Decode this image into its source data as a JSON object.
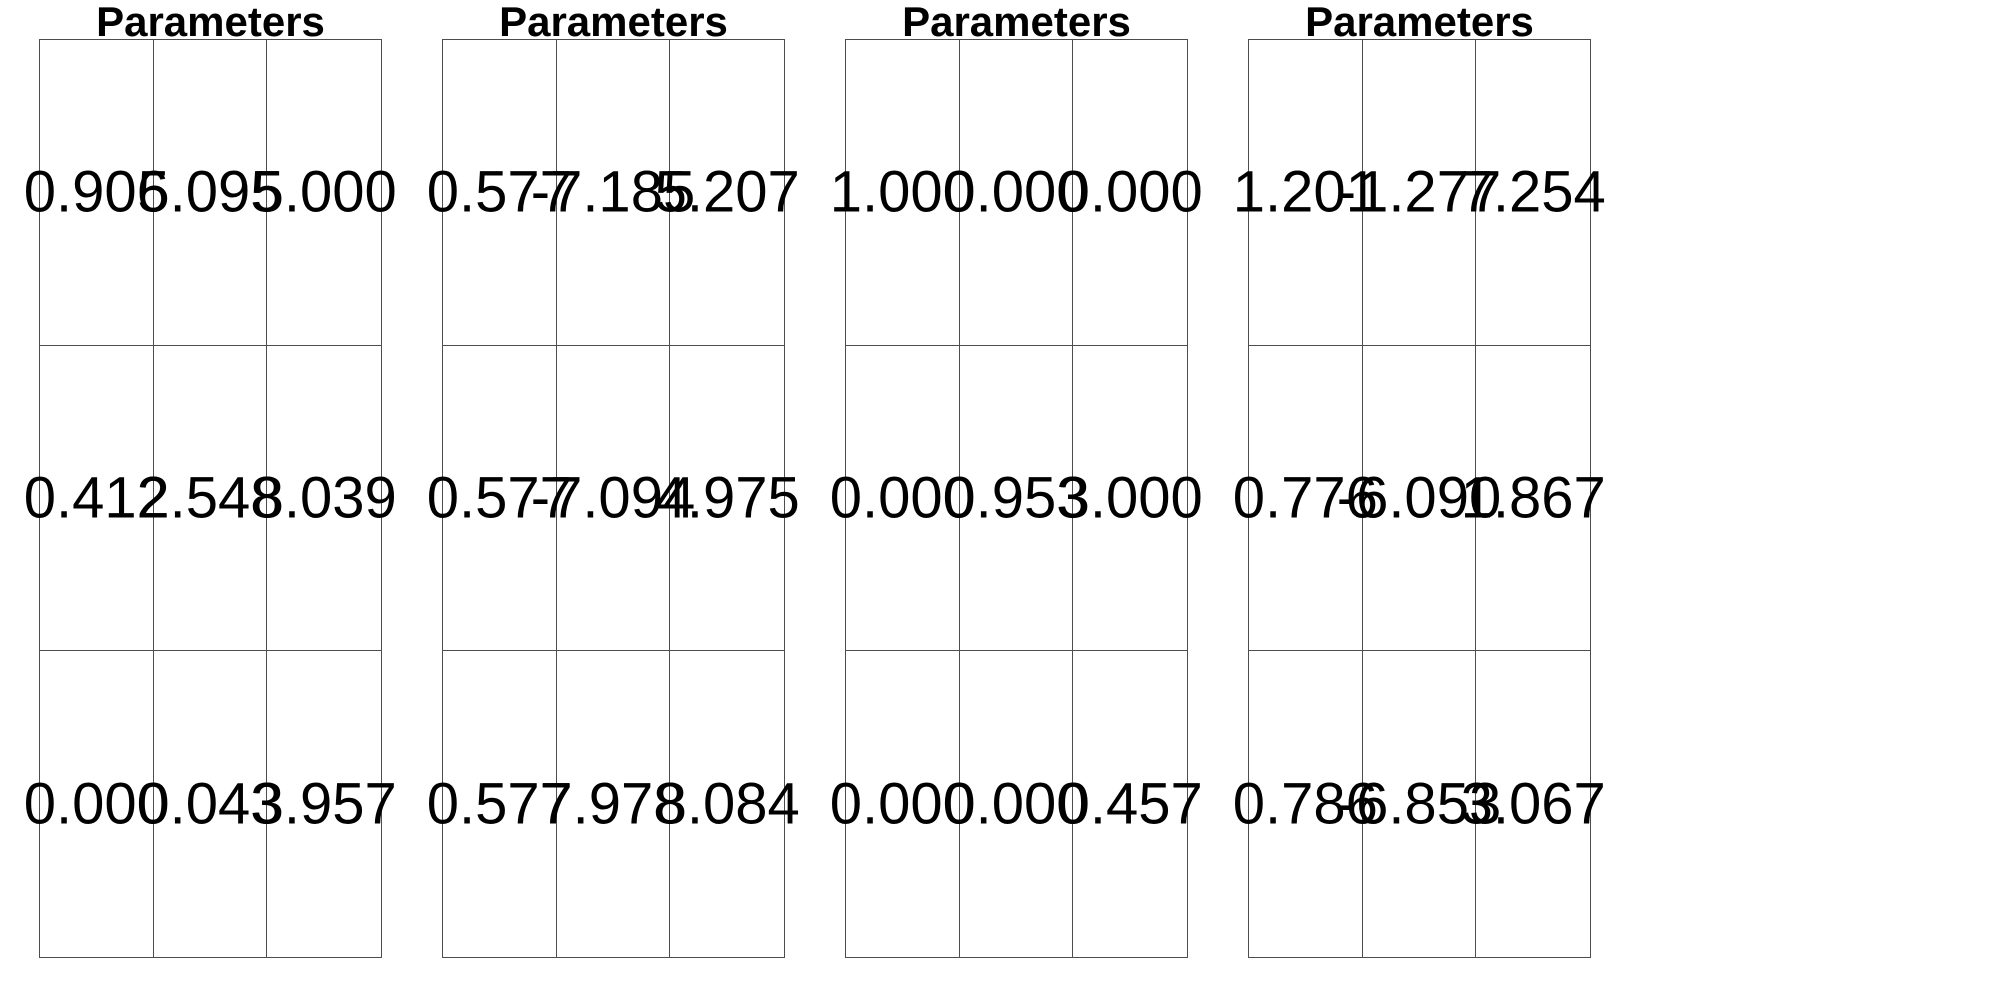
{
  "chart_data": [
    {
      "type": "table",
      "title": "Parameters",
      "rows": [
        [
          "0.906",
          "5.095",
          "5.000"
        ],
        [
          "0.412",
          "2.548",
          "8.039"
        ],
        [
          "0.000",
          "0.043",
          "3.957"
        ]
      ]
    },
    {
      "type": "table",
      "title": "Parameters",
      "rows": [
        [
          "0.577",
          "-7.185",
          "5.207"
        ],
        [
          "0.577",
          "-7.094",
          "4.975"
        ],
        [
          "0.577",
          "7.978",
          "8.084"
        ]
      ]
    },
    {
      "type": "table",
      "title": "Parameters",
      "rows": [
        [
          "1.000",
          "0.000",
          "0.000"
        ],
        [
          "0.000",
          "0.953",
          "3.000"
        ],
        [
          "0.000",
          "0.000",
          "0.457"
        ]
      ]
    },
    {
      "type": "table",
      "title": "Parameters",
      "rows": [
        [
          "1.201",
          "-1.277",
          "7.254"
        ],
        [
          "0.776",
          "-6.090",
          "1.867"
        ],
        [
          "0.786",
          "-6.853",
          "3.067"
        ]
      ]
    }
  ]
}
